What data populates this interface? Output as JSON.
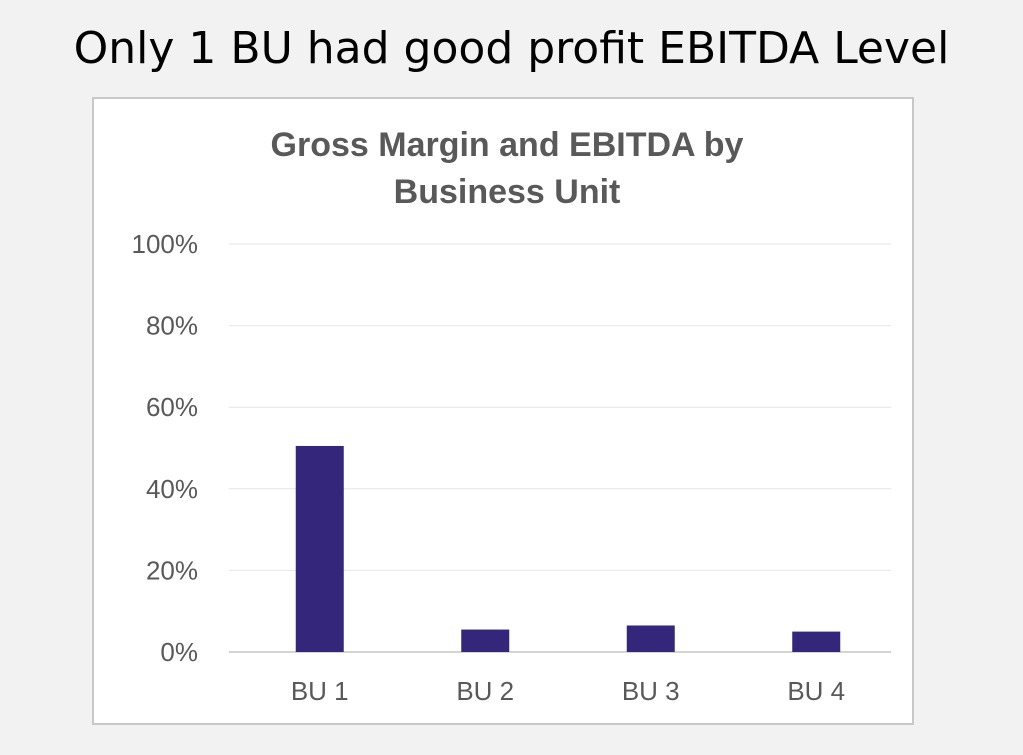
{
  "slide": {
    "title": "Only 1 BU had good profit EBITDA Level"
  },
  "chart_data": {
    "type": "bar",
    "title_lines": [
      "Gross Margin  and EBITDA by",
      "Business Unit"
    ],
    "categories": [
      "BU 1",
      "BU 2",
      "BU 3",
      "BU 4"
    ],
    "series": [
      {
        "values": [
          50.5,
          5.5,
          6.5,
          5
        ]
      }
    ],
    "ylim": [
      0,
      100
    ],
    "yticks": [
      0,
      20,
      40,
      60,
      80,
      100
    ],
    "ytick_labels": [
      "0%",
      "20%",
      "40%",
      "60%",
      "80%",
      "100%"
    ],
    "xlabel": "",
    "ylabel": "",
    "grid": true,
    "legend": "none",
    "colors": {
      "bar": "#34267a",
      "grid": "#e6e6e6",
      "axis": "#d4d4d4",
      "text": "#595959"
    }
  }
}
